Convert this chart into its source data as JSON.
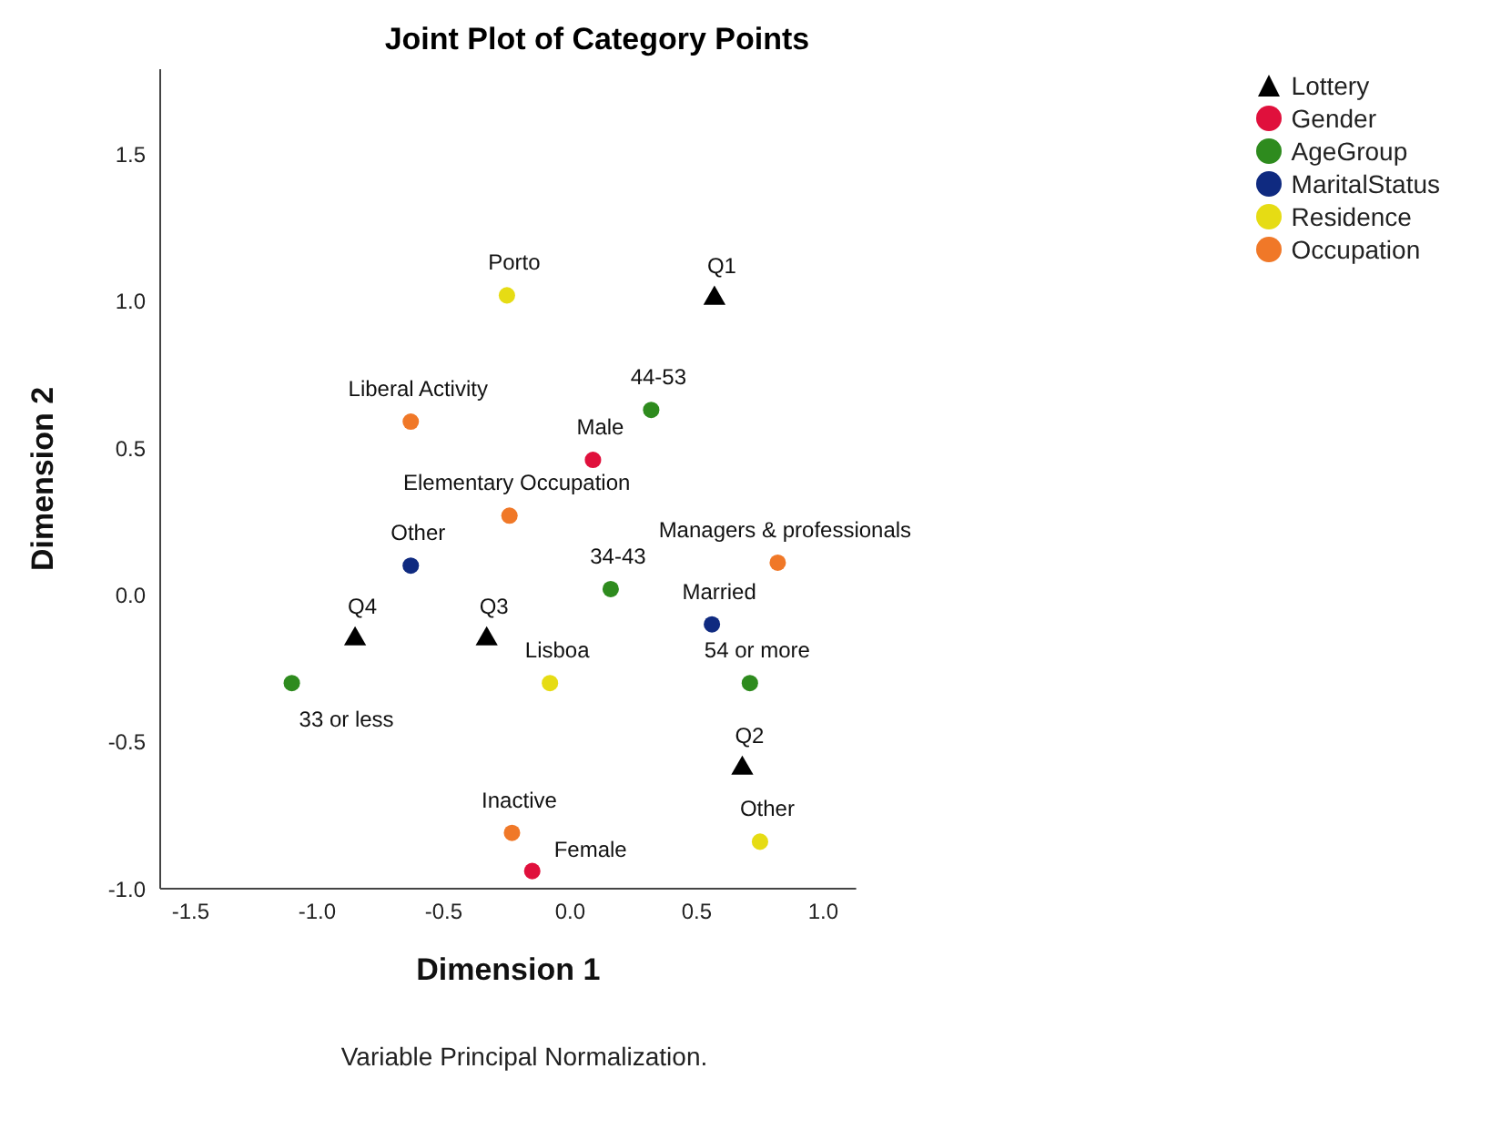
{
  "chart_data": {
    "type": "scatter",
    "title": "Joint Plot of Category Points",
    "xlabel": "Dimension 1",
    "ylabel": "Dimension 2",
    "xlim": [
      -1.62,
      1.13
    ],
    "ylim": [
      -1.0,
      1.79
    ],
    "xticks": [
      {
        "value": -1.5,
        "label": "-1.5"
      },
      {
        "value": -1.0,
        "label": "-1.0"
      },
      {
        "value": -0.5,
        "label": "-0.5"
      },
      {
        "value": 0.0,
        "label": "0.0"
      },
      {
        "value": 0.5,
        "label": "0.5"
      },
      {
        "value": 1.0,
        "label": "1.0"
      }
    ],
    "yticks": [
      {
        "value": -1.0,
        "label": "-1.0"
      },
      {
        "value": -0.5,
        "label": "-0.5"
      },
      {
        "value": 0.0,
        "label": "0.0"
      },
      {
        "value": 0.5,
        "label": "0.5"
      },
      {
        "value": 1.0,
        "label": "1.0"
      },
      {
        "value": 1.5,
        "label": "1.5"
      }
    ],
    "grid": false,
    "legend": "top right",
    "series": [
      {
        "name": "Lottery",
        "color": "#000000",
        "marker": "triangle",
        "x": [
          0.57,
          0.68,
          -0.33,
          -0.85
        ],
        "values": [
          1.01,
          -0.59,
          -0.15,
          -0.15
        ]
      },
      {
        "name": "Gender",
        "color": "#e0103c",
        "marker": "circle",
        "x": [
          0.09,
          -0.15
        ],
        "values": [
          0.46,
          -0.94
        ]
      },
      {
        "name": "AgeGroup",
        "color": "#2e8b1e",
        "marker": "circle",
        "x": [
          0.32,
          0.16,
          0.71,
          -1.1
        ],
        "values": [
          0.63,
          0.02,
          -0.3,
          -0.3
        ]
      },
      {
        "name": "MaritalStatus",
        "color": "#0f2a80",
        "marker": "circle",
        "x": [
          -0.63,
          0.56
        ],
        "values": [
          0.1,
          -0.1
        ]
      },
      {
        "name": "Residence",
        "color": "#e6dc14",
        "marker": "circle",
        "x": [
          -0.25,
          -0.08,
          0.75
        ],
        "values": [
          1.02,
          -0.3,
          -0.84
        ]
      },
      {
        "name": "Occupation",
        "color": "#f07828",
        "marker": "circle",
        "x": [
          -0.63,
          -0.24,
          0.82,
          -0.23
        ],
        "values": [
          0.59,
          0.27,
          0.11,
          -0.81
        ]
      }
    ],
    "annotations": [
      {
        "text": "Q1",
        "x": 0.57,
        "y": 1.01
      },
      {
        "text": "Q2",
        "x": 0.68,
        "y": -0.59
      },
      {
        "text": "Q3",
        "x": -0.33,
        "y": -0.15
      },
      {
        "text": "Q4",
        "x": -0.85,
        "y": -0.15
      },
      {
        "text": "Male",
        "x": 0.09,
        "y": 0.46
      },
      {
        "text": "Female",
        "x": -0.15,
        "y": -0.94
      },
      {
        "text": "44-53",
        "x": 0.32,
        "y": 0.63
      },
      {
        "text": "34-43",
        "x": 0.16,
        "y": 0.02
      },
      {
        "text": "54 or more",
        "x": 0.71,
        "y": -0.3
      },
      {
        "text": "33 or less",
        "x": -1.1,
        "y": -0.3
      },
      {
        "text": "Other",
        "x": -0.63,
        "y": 0.1
      },
      {
        "text": "Married",
        "x": 0.56,
        "y": -0.1
      },
      {
        "text": "Porto",
        "x": -0.25,
        "y": 1.02
      },
      {
        "text": "Lisboa",
        "x": -0.08,
        "y": -0.3
      },
      {
        "text": "Other",
        "x": 0.75,
        "y": -0.84
      },
      {
        "text": "Liberal Activity",
        "x": -0.63,
        "y": 0.59
      },
      {
        "text": "Elementary Occupation",
        "x": -0.24,
        "y": 0.27
      },
      {
        "text": "Managers & professionals",
        "x": 0.82,
        "y": 0.11
      },
      {
        "text": "Inactive",
        "x": -0.23,
        "y": -0.81
      },
      "Variable Principal Normalization."
    ]
  }
}
